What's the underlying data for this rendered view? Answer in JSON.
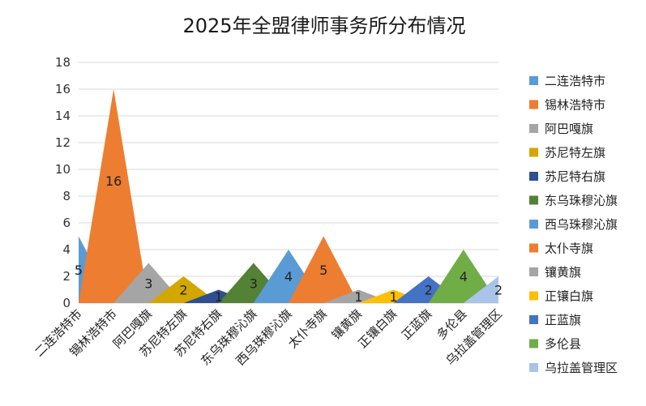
{
  "chart_data": {
    "type": "area",
    "title": "2025年全盟律师事务所分布情况",
    "xlabel": "",
    "ylabel": "",
    "ylim": [
      0,
      18
    ],
    "yticks": [
      0,
      2,
      4,
      6,
      8,
      10,
      12,
      14,
      16,
      18
    ],
    "grid": true,
    "legend_position": "right",
    "categories": [
      "二连浩特市",
      "锡林浩特市",
      "阿巴嘎旗",
      "苏尼特左旗",
      "苏尼特右旗",
      "东乌珠穆沁旗",
      "西乌珠穆沁旗",
      "太仆寺旗",
      "镶黄旗",
      "正镶白旗",
      "正蓝旗",
      "多伦县",
      "乌拉盖管理区"
    ],
    "values": [
      5,
      16,
      3,
      2,
      1,
      3,
      4,
      5,
      1,
      1,
      2,
      4,
      2
    ],
    "colors": [
      "#5b9bd5",
      "#ed7d31",
      "#a5a5a5",
      "#d4a600",
      "#2f4f8f",
      "#538135",
      "#5b9bd5",
      "#ed7d31",
      "#a5a5a5",
      "#ffc000",
      "#4472c4",
      "#70ad47",
      "#a9c4e8"
    ]
  }
}
